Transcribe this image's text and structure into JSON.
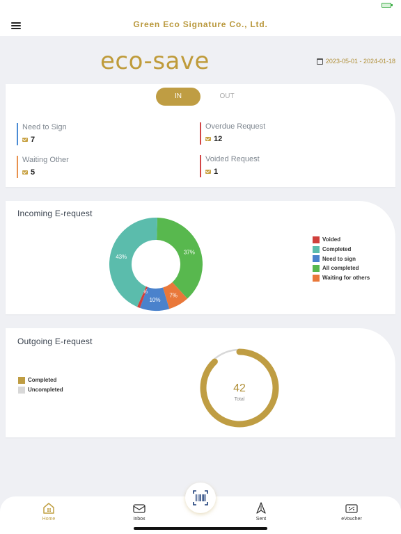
{
  "header": {
    "title": "Green Eco Signature Co., Ltd."
  },
  "logo": {
    "text": "eco-save"
  },
  "date_range": "2023-05-01 - 2024-01-18",
  "toggle": {
    "in_label": "IN",
    "out_label": "OUT",
    "selected": "IN"
  },
  "stats": {
    "need_to_sign": {
      "label": "Need to Sign",
      "value": "7"
    },
    "waiting_other": {
      "label": "Waiting Other",
      "value": "5"
    },
    "overdue_request": {
      "label": "Overdue Request",
      "value": "12"
    },
    "voided_request": {
      "label": "Voided Request",
      "value": "1"
    }
  },
  "incoming": {
    "title": "Incoming E-request"
  },
  "outgoing": {
    "title": "Outgoing E-request",
    "total_label": "Total"
  },
  "colors": {
    "accent": "#bf9d43",
    "voided": "#d0403c",
    "completed": "#5bbcac",
    "need_to_sign": "#4a82cc",
    "all_completed": "#58b84e",
    "waiting_for_others": "#e9783a",
    "uncompleted": "#d8d8d8"
  },
  "chart_data": [
    {
      "type": "pie",
      "title": "Incoming E-request",
      "slices": [
        {
          "name": "All completed",
          "value": 37,
          "label": "37%"
        },
        {
          "name": "Waiting for others",
          "value": 7,
          "label": "7%"
        },
        {
          "name": "Need to sign",
          "value": 10,
          "label": "10%"
        },
        {
          "name": "Voided",
          "value": 1,
          "label": "1%"
        },
        {
          "name": "Completed",
          "value": 43,
          "label": "43%"
        }
      ],
      "legend": [
        "Voided",
        "Completed",
        "Need to sign",
        "All completed",
        "Waiting for others"
      ],
      "legend_position": "right"
    },
    {
      "type": "pie",
      "title": "Outgoing E-request",
      "total": 42,
      "completed_fraction": 0.88,
      "legend": [
        "Completed",
        "Uncompleted"
      ],
      "legend_position": "left"
    }
  ],
  "nav": {
    "items": [
      {
        "label": "Home",
        "icon": "home-icon"
      },
      {
        "label": "Inbox",
        "icon": "inbox-icon"
      },
      {
        "label": "Sent",
        "icon": "sent-icon"
      },
      {
        "label": "eVoucher",
        "icon": "voucher-icon"
      }
    ],
    "scan_icon": "barcode-scan-icon"
  }
}
